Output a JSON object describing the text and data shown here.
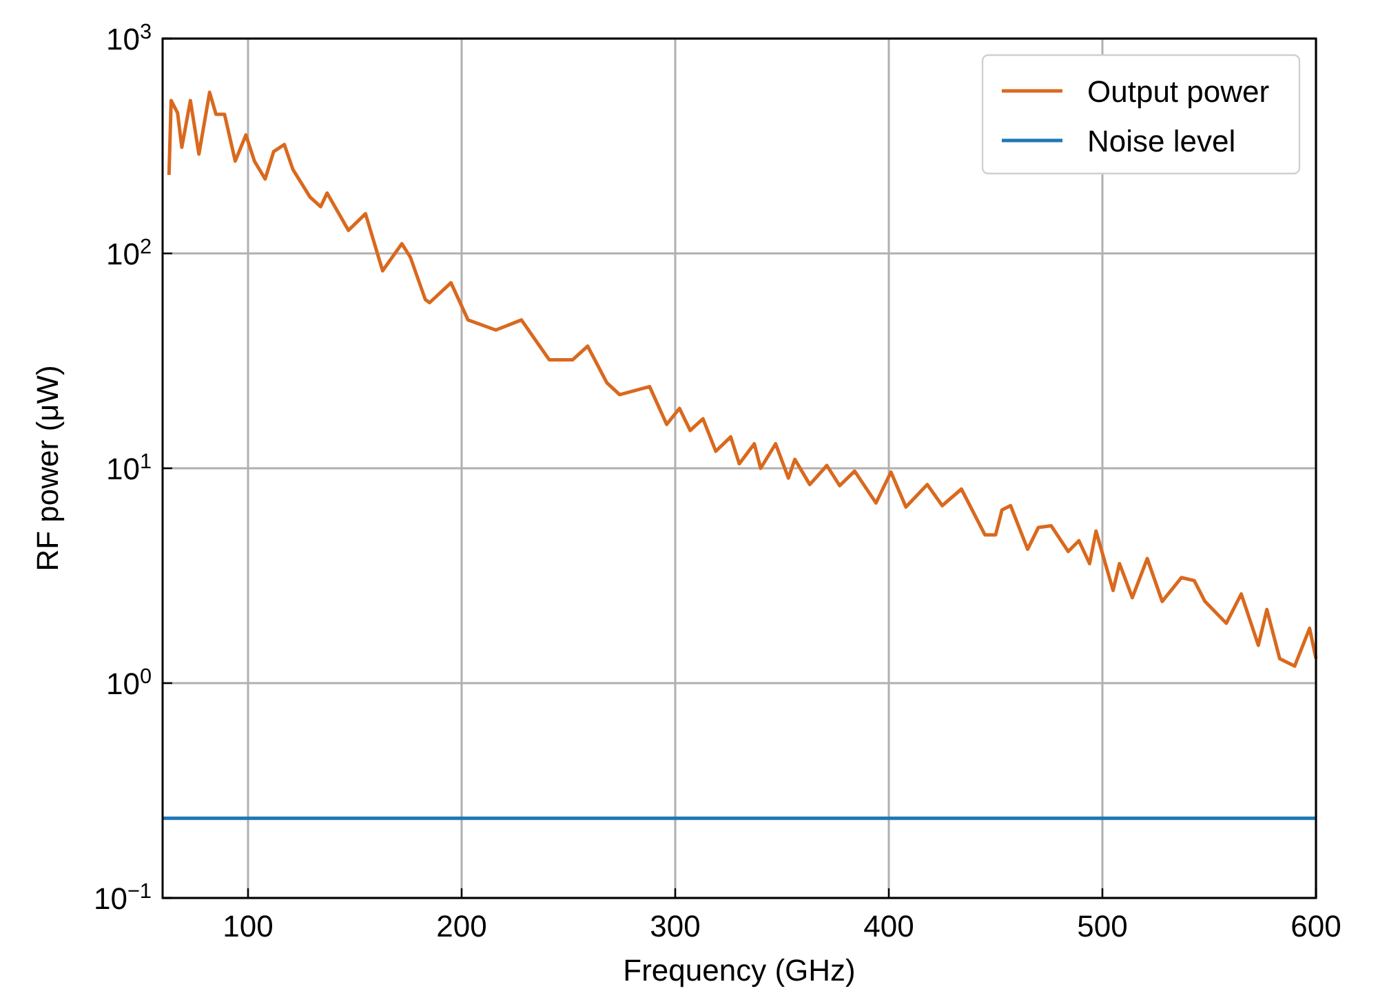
{
  "chart_data": {
    "type": "line",
    "xlabel": "Frequency (GHz)",
    "ylabel": "RF power (μW)",
    "log": "y",
    "grid": true,
    "legend": "top right",
    "line_style": "solid",
    "marker": "none",
    "xlim": [
      60,
      600
    ],
    "xticks": [
      100,
      200,
      300,
      400,
      500,
      600
    ],
    "ylim": [
      0.1,
      1000
    ],
    "yticks": [
      {
        "value": 0.1,
        "label": "10$^{−1}$"
      },
      {
        "value": 1,
        "label": "10$^{0}$"
      },
      {
        "value": 10,
        "label": "10$^{1}$"
      },
      {
        "value": 100,
        "label": "10$^{2}$"
      },
      {
        "value": 1000,
        "label": "10$^{3}$"
      }
    ],
    "series": [
      {
        "name": "Output power",
        "color": "#d9691e",
        "x": [
          63,
          64,
          67,
          69,
          73,
          77,
          82,
          85,
          89,
          94,
          99,
          103,
          108,
          112,
          117,
          121,
          129,
          134,
          137,
          147,
          155,
          163,
          172,
          176,
          183,
          185,
          195,
          203,
          216,
          228,
          241,
          252,
          259,
          268,
          274,
          288,
          296,
          302,
          307,
          313,
          319,
          326,
          330,
          337,
          340,
          347,
          353,
          356,
          363,
          371,
          377,
          384,
          394,
          401,
          408,
          418,
          425,
          434,
          445,
          450,
          453,
          457,
          465,
          470,
          476,
          484,
          489,
          494,
          497,
          505,
          508,
          514,
          521,
          528,
          537,
          543,
          548,
          558,
          565,
          573,
          577,
          583,
          590,
          597,
          600
        ],
        "values": [
          232,
          515,
          451,
          312,
          515,
          290,
          562,
          444,
          444,
          269,
          356,
          269,
          222,
          298,
          321,
          246,
          183,
          165,
          191,
          128,
          153,
          83,
          111,
          96,
          61,
          59,
          73,
          49,
          44,
          49,
          32,
          32,
          37,
          25,
          22,
          24,
          16,
          19,
          15,
          17,
          12,
          14,
          10.5,
          13,
          10,
          13,
          9,
          11,
          8.4,
          10.3,
          8.3,
          9.7,
          6.9,
          9.6,
          6.6,
          8.4,
          6.7,
          8,
          4.9,
          4.9,
          6.4,
          6.7,
          4.2,
          5.3,
          5.4,
          4.1,
          4.6,
          3.6,
          5.1,
          2.7,
          3.6,
          2.5,
          3.8,
          2.4,
          3.1,
          3,
          2.4,
          1.9,
          2.6,
          1.5,
          2.2,
          1.3,
          1.2,
          1.8,
          1.3
        ]
      },
      {
        "name": "Noise level",
        "color": "#1f77b4",
        "x": [
          60,
          600
        ],
        "values": [
          0.235,
          0.235
        ]
      }
    ]
  }
}
